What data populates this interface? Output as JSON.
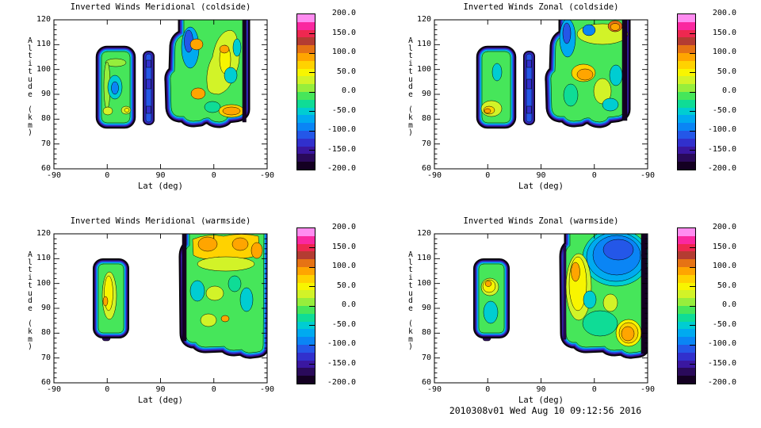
{
  "palette": {
    "background": "#ffffff",
    "contour_line_color": "#000000",
    "colors": [
      "#140022",
      "#2a0a5a",
      "#3a17a0",
      "#3130cd",
      "#2457e8",
      "#0a85f5",
      "#00aaf0",
      "#00cdd2",
      "#0fdc96",
      "#46e65a",
      "#96ee3c",
      "#d2f328",
      "#f8f500",
      "#ffd200",
      "#ffa500",
      "#e67314",
      "#b43c32",
      "#ee2850",
      "#fa28a0",
      "#ff8cf0"
    ]
  },
  "axes": {
    "xlabel": "Lat (deg)",
    "ylabel": "Altitude (km)",
    "x_ticks": [
      "-90",
      "0",
      "90",
      "0",
      "-90"
    ],
    "y_ticks": [
      "120",
      "110",
      "100",
      "90",
      "80",
      "70",
      "60"
    ],
    "y_range": [
      60,
      120
    ],
    "y_minor_step": 2
  },
  "colorbar": {
    "labels": [
      "200.0",
      "150.0",
      "100.0",
      "50.0",
      "0.0",
      "-50.0",
      "-100.0",
      "-150.0",
      "-200.0"
    ],
    "min": -200,
    "max": 200,
    "band_step": 20,
    "tick_values": [
      150,
      100,
      50,
      0,
      -50,
      -100,
      -150
    ]
  },
  "panels": [
    {
      "id": "meridional-coldside",
      "title": "Inverted Winds Meridional (coldside)"
    },
    {
      "id": "zonal-coldside",
      "title": "Inverted Winds Zonal (coldside)"
    },
    {
      "id": "meridional-warmside",
      "title": "Inverted Winds Meridional (warmside)"
    },
    {
      "id": "zonal-warmside",
      "title": "Inverted Winds Zonal (warmside)"
    }
  ],
  "footer": {
    "timestamp": "2010308v01 Wed Aug 10 09:12:56 2016"
  },
  "chart_data": [
    {
      "type": "heatmap",
      "subtype": "filled_contour",
      "title": "Inverted Winds Meridional (coldside)",
      "xlabel": "Lat (deg)",
      "ylabel": "Altitude (km)",
      "x_tick_labels": [
        "-90",
        "0",
        "90",
        "0",
        "-90"
      ],
      "ylim": [
        60,
        120
      ],
      "zlim": [
        -200,
        200
      ],
      "contour_interval": 20,
      "legend_position": "right-colorbar",
      "grid": false,
      "regions": [
        {
          "area": "first-pass patch, lat -15..47, alt 76-110 km",
          "values": "edge rings -200..-100 (purple/blue), interior -40..0 green; cyan pocket about -90 near 90 km; yellow pockets about +30 near 80 km; yellow-green band near 105 km"
        },
        {
          "area": "narrow strip, lat 65..75 first pass, alt 78-108 km",
          "values": "blue about -120 with darker -140 segments and purple edge"
        },
        {
          "area": "second-pass region, lat 90..-55, alt 76 to >120 km",
          "values": "green base -40..0; blue/cyan -80..-120 near lat 90 at 95-120 km; yellow band +20..+60 mid-region; orange cells +80..+100 near 108 km, 100 km and 82 km; teal pockets -60; dark column at right edge"
        }
      ]
    },
    {
      "type": "heatmap",
      "subtype": "filled_contour",
      "title": "Inverted Winds Zonal (coldside)",
      "xlabel": "Lat (deg)",
      "ylabel": "Altitude (km)",
      "x_tick_labels": [
        "-90",
        "0",
        "90",
        "0",
        "-90"
      ],
      "ylim": [
        60,
        120
      ],
      "zlim": [
        -200,
        200
      ],
      "contour_interval": 20,
      "legend_position": "right-colorbar",
      "grid": false,
      "regions": [
        {
          "area": "first-pass patch, lat -15..47, alt 76-110 km",
          "values": "green interior with teal pocket near 95 km; yellow/orange cell +40..+100 near 82-85 km"
        },
        {
          "area": "narrow strip, lat 65..75 first pass, alt 78-108 km",
          "values": "blue about -120 with darker segments"
        },
        {
          "area": "second-pass region, lat 90..-55, alt 76 to >120 km",
          "values": "yellow band along top with dark-red core about +110 near 118 km; blue -120 column at lat 90 top; orange cell +80..+100 near 100 km; green/teal base -60..0; cyan pockets right side"
        }
      ]
    },
    {
      "type": "heatmap",
      "subtype": "filled_contour",
      "title": "Inverted Winds Meridional (warmside)",
      "xlabel": "Lat (deg)",
      "ylabel": "Altitude (km)",
      "x_tick_labels": [
        "-90",
        "0",
        "90",
        "0",
        "-90"
      ],
      "ylim": [
        60,
        120
      ],
      "zlim": [
        -200,
        200
      ],
      "contour_interval": 20,
      "legend_position": "right-colorbar",
      "grid": false,
      "regions": [
        {
          "area": "first-pass patch, lat -10..25, alt 77-110 km",
          "values": "vertical yellow streak +20..+60 center with small orange spot, green surround, blue/purple ring edges"
        },
        {
          "area": "second-pass region, lat 115..-90, alt 73 to >120 km",
          "values": "amber/orange band +60..+100 across 110-120 km; green base -40..0 with yellow patches; teal pockets -60; heavy dark left edge; blue/purple bottom rings"
        }
      ]
    },
    {
      "type": "heatmap",
      "subtype": "filled_contour",
      "title": "Inverted Winds Zonal (warmside)",
      "xlabel": "Lat (deg)",
      "ylabel": "Altitude (km)",
      "x_tick_labels": [
        "-90",
        "0",
        "90",
        "0",
        "-90"
      ],
      "ylim": [
        60,
        120
      ],
      "zlim": [
        -200,
        200
      ],
      "contour_interval": 20,
      "legend_position": "right-colorbar",
      "grid": false,
      "regions": [
        {
          "area": "first-pass patch, lat -10..25, alt 77-110 km",
          "values": "yellow band +40 with orange core near 100-104 km; teal/green -60..-20 below"
        },
        {
          "area": "second-pass region, lat 115..-90, alt 73 to >120 km",
          "values": "large blue/cyan region -80..-140 top-right 100-120 km; yellow/orange streak +40..+90 along left edge 85-115 km; green/teal base; orange cell +80..+100 near 82 km lat -75; dark column at right spine"
        }
      ]
    }
  ]
}
